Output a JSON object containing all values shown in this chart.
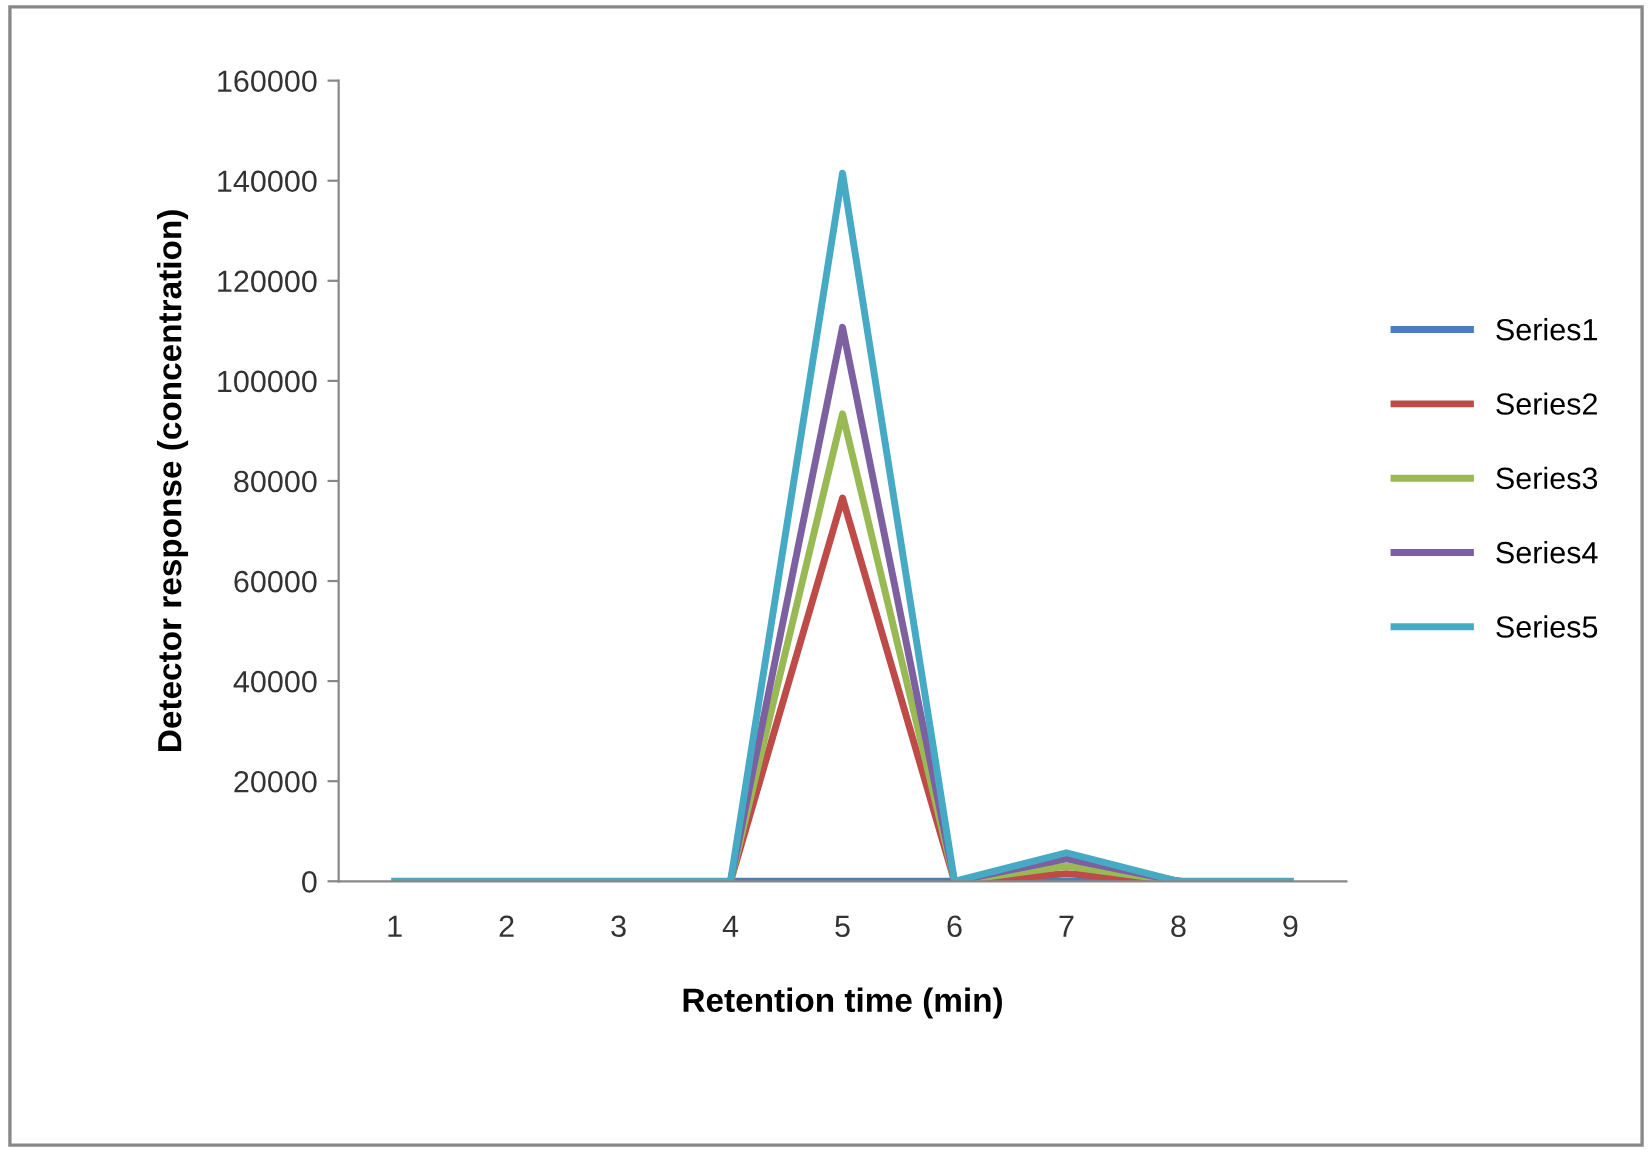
{
  "chart_data": {
    "type": "line",
    "xlabel": "Retention time (min)",
    "ylabel": "Detector response (concentration)",
    "categories": [
      "1",
      "2",
      "3",
      "4",
      "5",
      "6",
      "7",
      "8",
      "9"
    ],
    "ylim": [
      0,
      160000
    ],
    "yticks": [
      0,
      20000,
      40000,
      60000,
      80000,
      100000,
      120000,
      140000,
      160000
    ],
    "legend": "right",
    "grid": false,
    "marker": "none",
    "line_style": "solid",
    "series": [
      {
        "name": "Series1",
        "color": "#4a7ebb",
        "values": [
          null,
          null,
          null,
          0,
          0,
          0,
          0,
          0,
          null
        ]
      },
      {
        "name": "Series2",
        "color": "#be4b48",
        "values": [
          null,
          null,
          null,
          0,
          76600,
          0,
          1500,
          0,
          null
        ]
      },
      {
        "name": "Series3",
        "color": "#98b954",
        "values": [
          null,
          null,
          null,
          0,
          93400,
          0,
          3000,
          0,
          null
        ]
      },
      {
        "name": "Series4",
        "color": "#7d60a0",
        "values": [
          null,
          null,
          null,
          0,
          110700,
          0,
          4500,
          0,
          null
        ]
      },
      {
        "name": "Series5",
        "color": "#46aac5",
        "values": [
          0,
          0,
          0,
          0,
          141500,
          0,
          5700,
          0,
          0
        ]
      }
    ]
  }
}
